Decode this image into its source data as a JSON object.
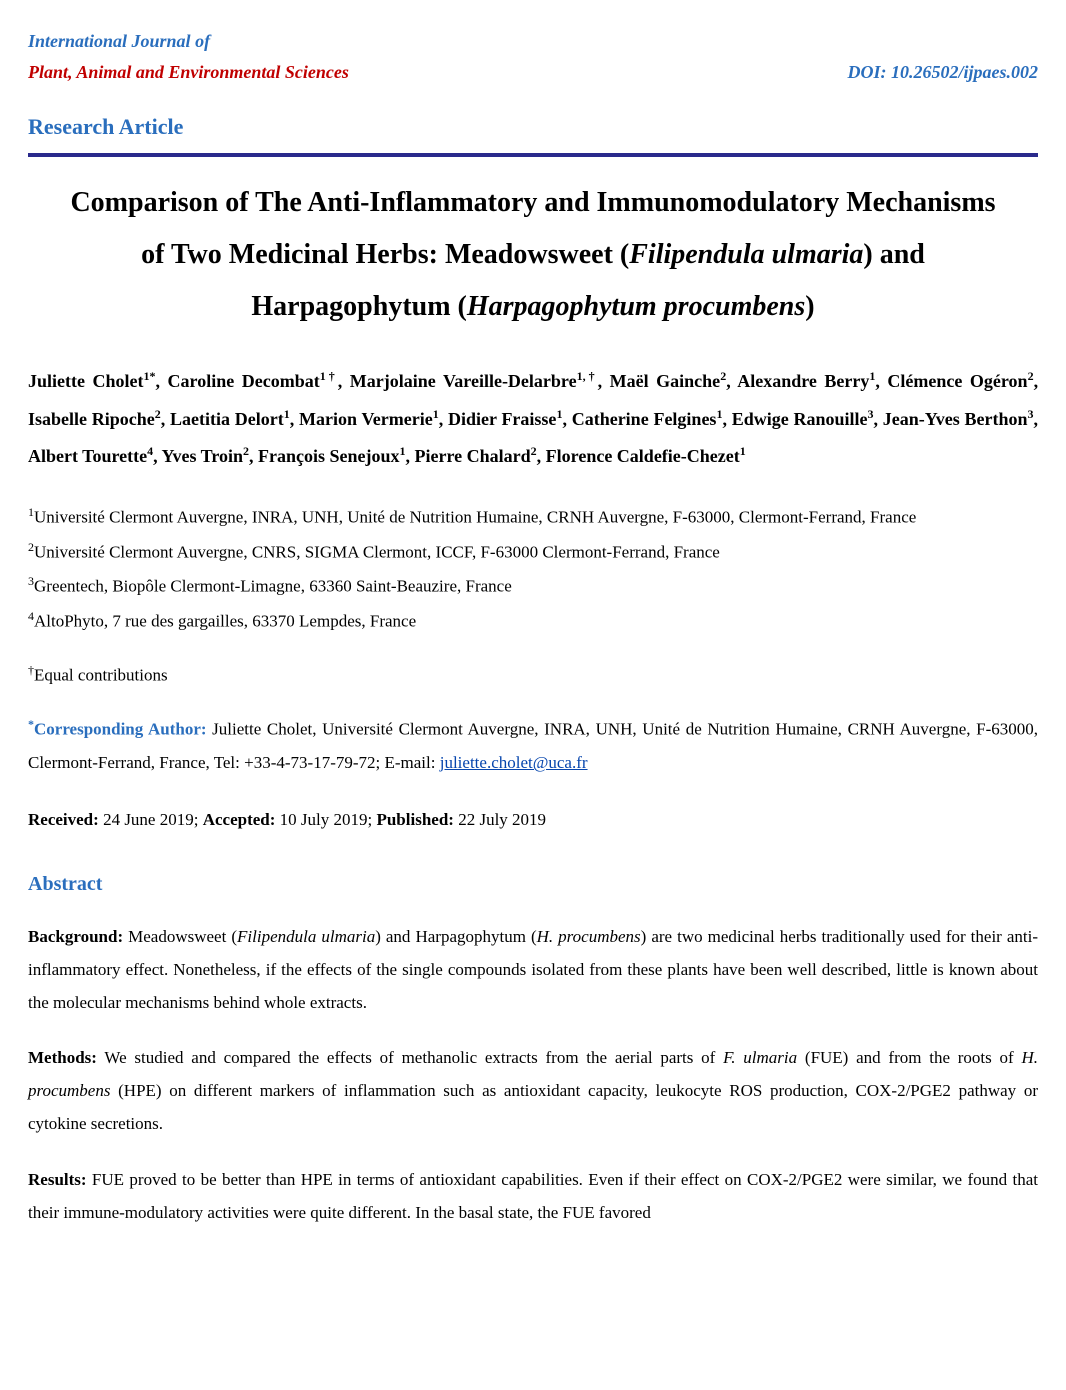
{
  "header": {
    "journal_line1": "International Journal of",
    "journal_line2": "Plant, Animal and Environmental Sciences",
    "doi": "DOI: 10.26502/ijpaes.002",
    "article_type": "Research Article"
  },
  "title": {
    "part1": "Comparison of The Anti-Inflammatory and Immunomodulatory Mechanisms of Two Medicinal Herbs: Meadowsweet (",
    "ital1": "Filipendula ulmaria",
    "part2": ") and Harpagophytum (",
    "ital2": "Harpagophytum procumbens",
    "part3": ")"
  },
  "authors": [
    {
      "name": "Juliette Cholet",
      "sup": "1*"
    },
    {
      "name": "Caroline Decombat",
      "sup": "1†"
    },
    {
      "name": "Marjolaine Vareille-Delarbre",
      "sup": "1,†"
    },
    {
      "name": "Maël Gainche",
      "sup": "2"
    },
    {
      "name": "Alexandre Berry",
      "sup": "1"
    },
    {
      "name": "Clémence Ogéron",
      "sup": "2"
    },
    {
      "name": "Isabelle Ripoche",
      "sup": "2"
    },
    {
      "name": "Laetitia Delort",
      "sup": "1"
    },
    {
      "name": "Marion Vermerie",
      "sup": "1"
    },
    {
      "name": "Didier Fraisse",
      "sup": "1"
    },
    {
      "name": "Catherine Felgines",
      "sup": "1"
    },
    {
      "name": "Edwige Ranouille",
      "sup": "3"
    },
    {
      "name": "Jean-Yves Berthon",
      "sup": "3"
    },
    {
      "name": "Albert Tourette",
      "sup": "4"
    },
    {
      "name": "Yves Troin",
      "sup": "2"
    },
    {
      "name": "François Senejoux",
      "sup": "1"
    },
    {
      "name": "Pierre Chalard",
      "sup": "2"
    },
    {
      "name": "Florence Caldefie-Chezet",
      "sup": "1"
    }
  ],
  "affiliations": [
    {
      "sup": "1",
      "text": "Université Clermont Auvergne, INRA, UNH, Unité de Nutrition Humaine, CRNH Auvergne, F-63000, Clermont-Ferrand, France"
    },
    {
      "sup": "2",
      "text": "Université Clermont Auvergne, CNRS, SIGMA Clermont, ICCF, F-63000 Clermont-Ferrand, France"
    },
    {
      "sup": "3",
      "text": "Greentech, Biopôle Clermont-Limagne, 63360 Saint-Beauzire, France"
    },
    {
      "sup": "4",
      "text": "AltoPhyto, 7 rue des gargailles, 63370 Lempdes, France"
    }
  ],
  "equal_contrib": {
    "sup": "†",
    "text": "Equal contributions"
  },
  "corresponding": {
    "label": "Corresponding Author:",
    "body": " Juliette Cholet, Université Clermont Auvergne, INRA, UNH, Unité de Nutrition Humaine, CRNH Auvergne, F-63000, Clermont-Ferrand, France, Tel: +33-4-73-17-79-72; E-mail: ",
    "email": "juliette.cholet@uca.fr"
  },
  "dates": {
    "received_label": "Received:",
    "received": " 24 June 2019; ",
    "accepted_label": "Accepted:",
    "accepted": " 10 July 2019; ",
    "published_label": "Published:",
    "published": " 22 July 2019"
  },
  "abstract": {
    "heading": "Abstract",
    "background": {
      "label": "Background:",
      "p1": " Meadowsweet (",
      "i1": "Filipendula ulmaria",
      "p2": ") and Harpagophytum (",
      "i2": "H. procumbens",
      "p3": ") are two medicinal herbs traditionally used for their anti-inflammatory effect. Nonetheless, if the effects of the single compounds isolated from these plants have been well described, little is known about the molecular mechanisms behind whole extracts."
    },
    "methods": {
      "label": "Methods:",
      "p1": " We studied and compared the effects of methanolic extracts from the aerial parts of ",
      "i1": "F. ulmaria",
      "p2": " (FUE) and from the roots of ",
      "i2": "H. procumbens",
      "p3": " (HPE) on different markers of inflammation such as antioxidant capacity, leukocyte ROS production, COX-2/PGE2 pathway or cytokine secretions."
    },
    "results": {
      "label": "Results:",
      "text": " FUE proved to be better than HPE in terms of antioxidant capabilities. Even if their effect on COX-2/PGE2 were similar, we found that their immune-modulatory activities were quite different. In the basal state, the FUE favored"
    }
  },
  "colors": {
    "blue": "#2a6ebd",
    "red": "#c00000",
    "rule": "#2a2a8c",
    "link": "#0645ad",
    "bg": "#ffffff",
    "text": "#000000"
  },
  "fontsizes": {
    "header": 18,
    "article_type": 22,
    "title": 28,
    "authors": 18,
    "body": 17,
    "abstract_heading": 20
  }
}
